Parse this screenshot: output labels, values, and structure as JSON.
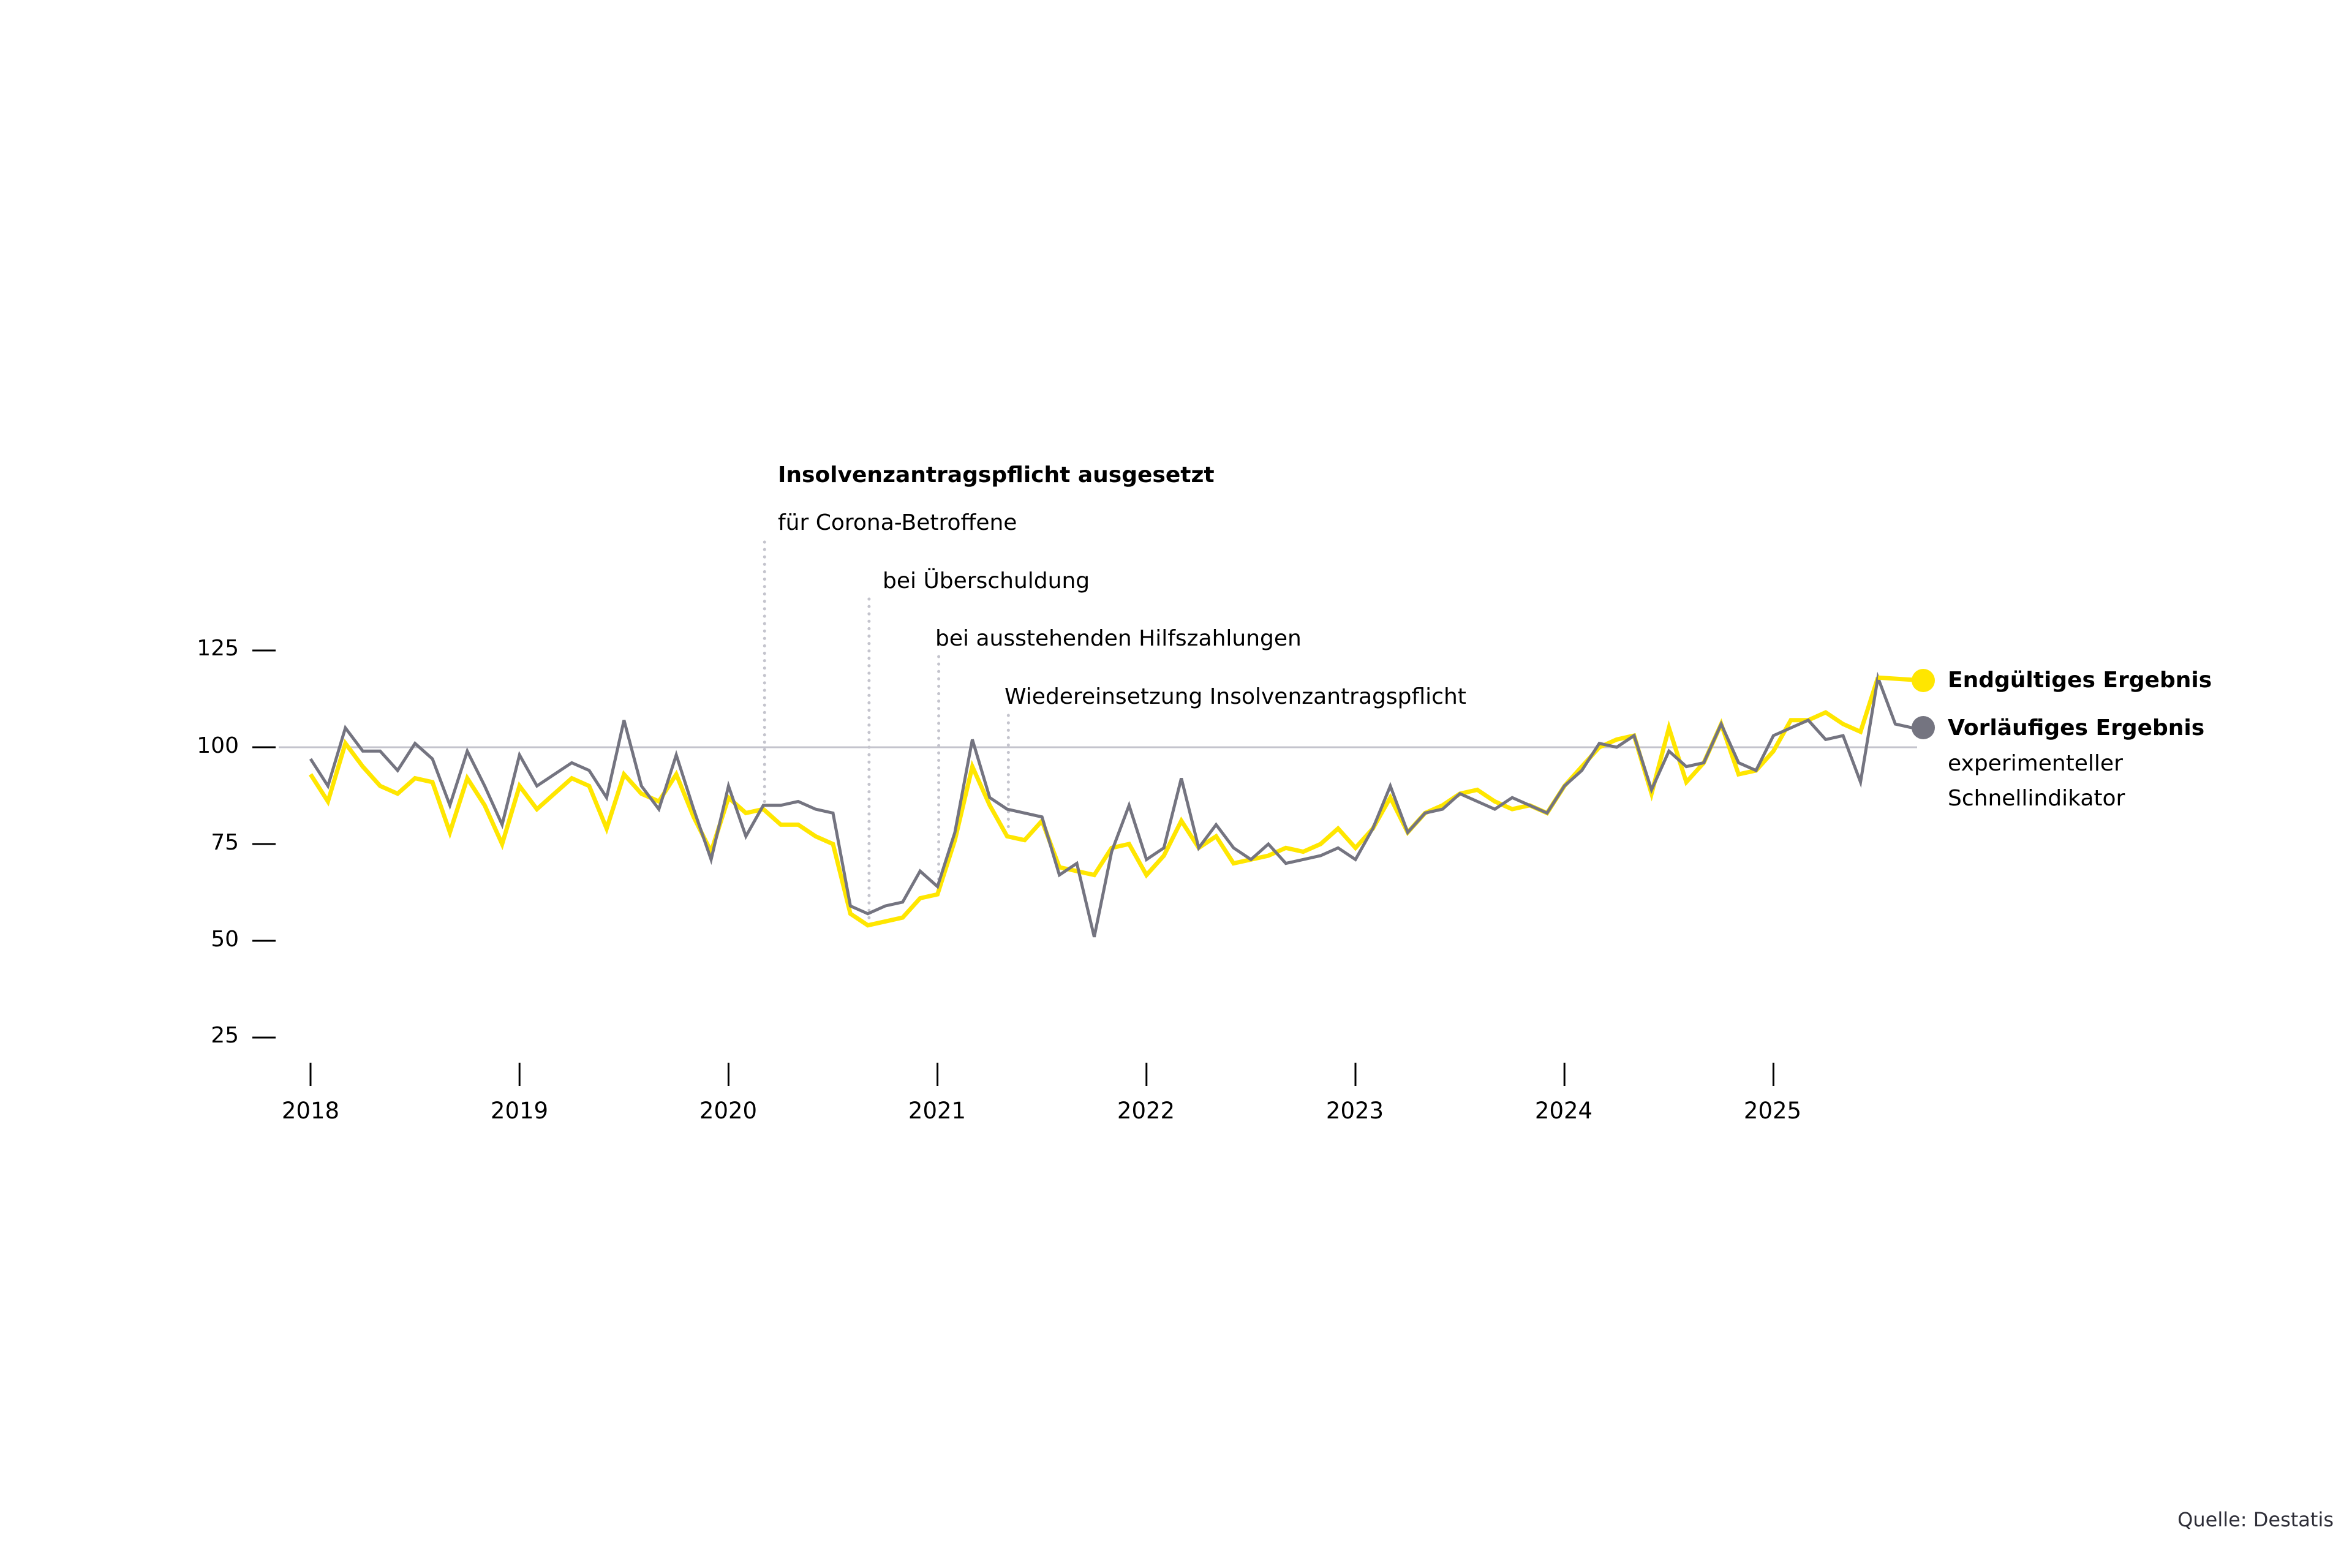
{
  "chart_data": {
    "type": "line",
    "title": "",
    "xlabel": "",
    "ylabel": "",
    "ylim": [
      25,
      125
    ],
    "yticks": [
      125,
      100,
      75,
      50,
      25
    ],
    "reference_line": 100,
    "x_tick_labels": [
      "2018",
      "2019",
      "2020",
      "2021",
      "2022",
      "2023",
      "2024",
      "2025"
    ],
    "start": "2018-01",
    "frequency": "monthly",
    "grid": false,
    "legend_position": "right",
    "series": [
      {
        "name": "Endgültiges Ergebnis",
        "color": "#ffe600",
        "values": [
          93,
          86,
          101,
          95,
          90,
          88,
          92,
          91,
          78,
          92,
          85,
          75,
          90,
          84,
          88,
          92,
          90,
          79,
          93,
          88,
          86,
          93,
          82,
          73,
          87,
          83,
          84,
          80,
          80,
          77,
          75,
          57,
          54,
          55,
          56,
          61,
          62,
          76,
          95,
          85,
          77,
          76,
          81,
          69,
          68,
          67,
          74,
          75,
          67,
          72,
          81,
          74,
          77,
          70,
          71,
          72,
          74,
          73,
          75,
          79,
          74,
          79,
          87,
          78,
          83,
          85,
          88,
          89,
          86,
          84,
          85,
          83,
          90,
          95,
          100,
          102,
          103,
          88,
          105,
          91,
          96,
          106,
          93,
          94,
          99,
          107,
          107,
          109,
          106,
          104,
          118
        ]
      },
      {
        "name": "Vorläufiges Ergebnis",
        "subtitle": "experimenteller Schnellindikator",
        "color": "#747480",
        "values": [
          97,
          90,
          105,
          99,
          99,
          94,
          101,
          97,
          85,
          99,
          90,
          80,
          98,
          90,
          93,
          96,
          94,
          87,
          107,
          90,
          84,
          98,
          84,
          71,
          90,
          77,
          85,
          85,
          86,
          84,
          83,
          59,
          57,
          59,
          60,
          68,
          64,
          78,
          102,
          87,
          84,
          83,
          82,
          67,
          70,
          51,
          73,
          85,
          71,
          74,
          92,
          74,
          80,
          74,
          71,
          75,
          70,
          71,
          72,
          74,
          71,
          79,
          90,
          78,
          83,
          84,
          88,
          86,
          84,
          87,
          85,
          83,
          90,
          94,
          101,
          100,
          103,
          89,
          99,
          95,
          96,
          106,
          96,
          94,
          103,
          105,
          107,
          102,
          103,
          91,
          118,
          106,
          105
        ]
      }
    ],
    "annotations": [
      {
        "text": "Insolvenzantragspflicht ausgesetzt",
        "bold": true,
        "date": "2020-03"
      },
      {
        "text": "für Corona-Betroffene",
        "bold": false,
        "date": "2020-03"
      },
      {
        "text": "bei Überschuldung",
        "bold": false,
        "date": "2020-09"
      },
      {
        "text": "bei ausstehenden Hilfszahlungen",
        "bold": false,
        "date": "2021-01"
      },
      {
        "text": "Wiedereinsetzung Insolvenzantragspflicht",
        "bold": false,
        "date": "2021-05"
      }
    ]
  },
  "axis": {
    "y_labels": [
      "125",
      "100",
      "75",
      "50",
      "25"
    ],
    "x_labels": [
      "2018",
      "2019",
      "2020",
      "2021",
      "2022",
      "2023",
      "2024",
      "2025"
    ]
  },
  "annotations": {
    "title": "Insolvenzantragspflicht ausgesetzt",
    "a1": "für Corona-Betroffene",
    "a2": "bei Überschuldung",
    "a3": "bei ausstehenden Hilfszahlungen",
    "a4": "Wiedereinsetzung Insolvenzantragspflicht"
  },
  "legend": {
    "final": "Endgültiges Ergebnis",
    "preliminary": "Vorläufiges Ergebnis",
    "preliminary_sub1": "experimenteller",
    "preliminary_sub2": "Schnellindikator"
  },
  "source": "Quelle: Destatis"
}
